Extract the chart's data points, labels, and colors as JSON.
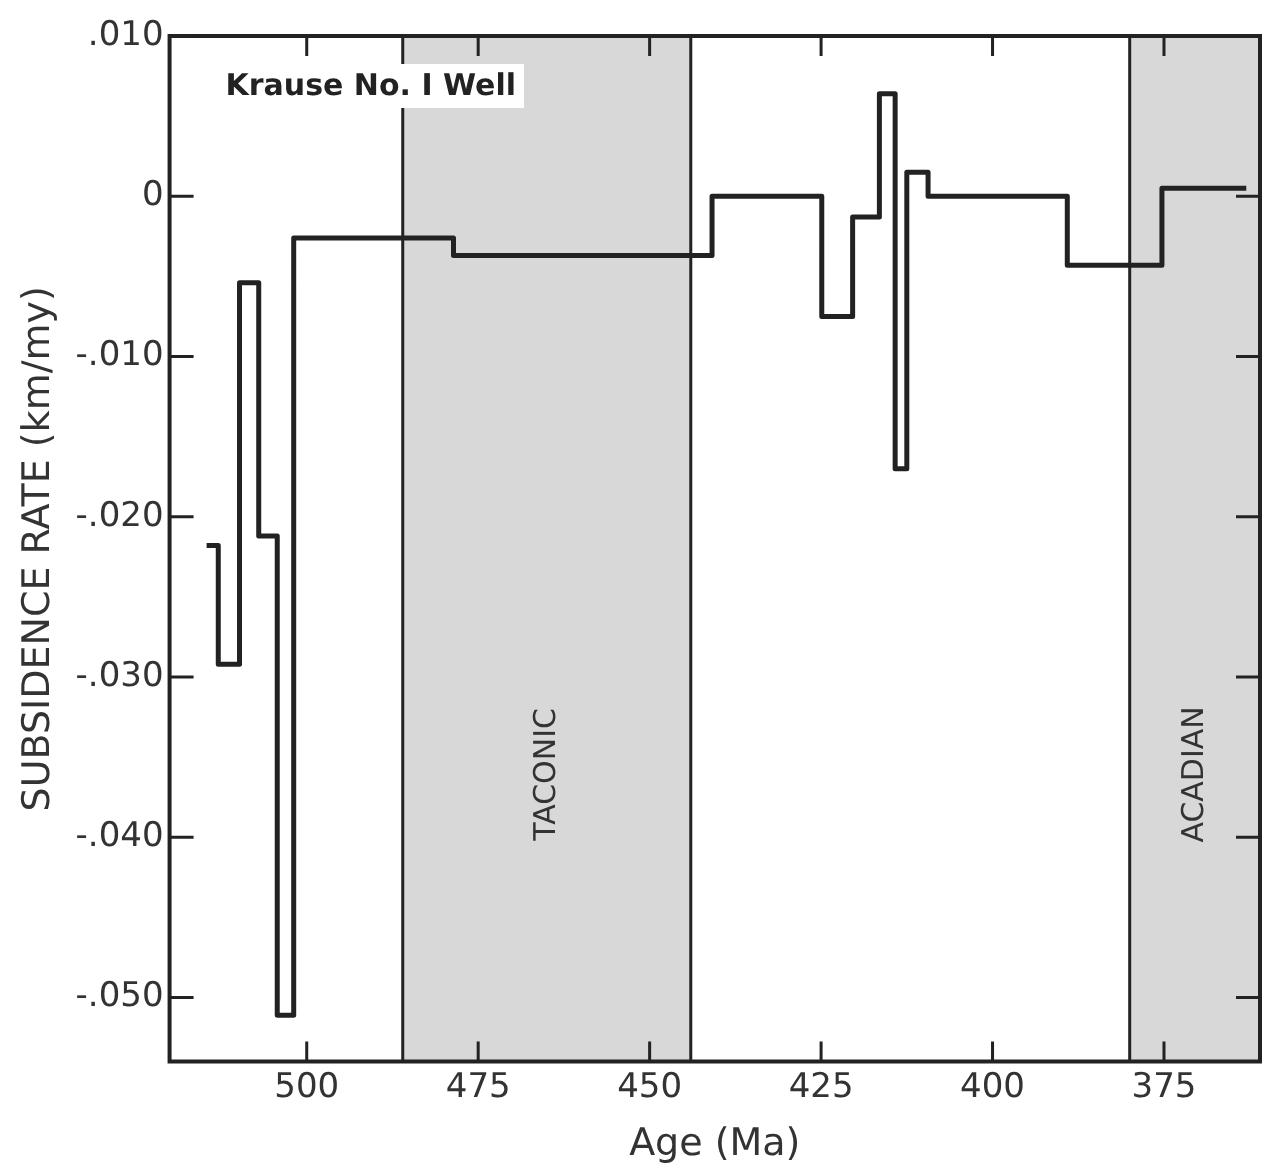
{
  "chart_data": {
    "type": "step",
    "xlabel": "Age (Ma)",
    "ylabel": "SUBSIDENCE RATE (km/my)",
    "annotations": [
      "Krause No. I Well"
    ],
    "xlim": [
      520,
      361
    ],
    "xticks": [
      500,
      475,
      450,
      425,
      400,
      375
    ],
    "ylim": [
      -0.054,
      0.01
    ],
    "yticks": [
      {
        "value": 0.01,
        "label": ".010"
      },
      0,
      {
        "value": -0.01,
        "label": "-.010"
      },
      {
        "value": -0.02,
        "label": "-.020"
      },
      {
        "value": -0.03,
        "label": "-.030"
      },
      {
        "value": -0.04,
        "label": "-.040"
      },
      {
        "value": -0.05,
        "label": "-.050"
      }
    ],
    "grid": false,
    "legend": false,
    "marker": "none",
    "line_style": "solid",
    "bands": [
      {
        "axis": "x",
        "from": 486,
        "to": 444,
        "label": "TACONIC",
        "color": "#d8d8d8"
      },
      {
        "axis": "x",
        "from": 380,
        "to": 361,
        "label": "ACADIAN",
        "color": "#d8d8d8"
      }
    ],
    "series": [
      {
        "color": "#222222",
        "x": [
          514.6,
          512.9,
          509.8,
          507.0,
          504.3,
          501.9,
          478.6,
          440.9,
          424.9,
          420.4,
          416.5,
          414.2,
          412.5,
          409.4,
          389.1,
          375.3,
          363
        ],
        "values": [
          -0.0218,
          -0.0292,
          -0.0054,
          -0.0212,
          -0.0511,
          -0.0026,
          -0.0037,
          0,
          -0.0075,
          -0.0013,
          0.0064,
          -0.017,
          0.0015,
          0,
          -0.0043,
          0.0005,
          0.0005
        ]
      }
    ]
  }
}
